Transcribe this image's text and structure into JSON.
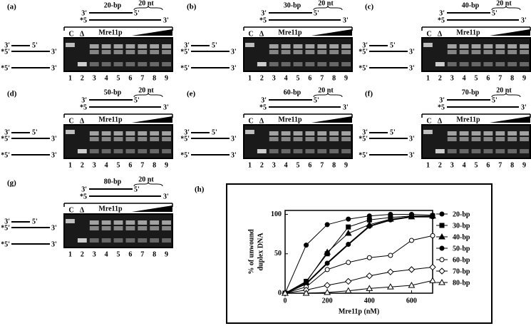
{
  "panels": [
    {
      "label": "(a)",
      "length": "20-bp",
      "overhang": "20 nt",
      "duplex": [
        "3'",
        "5'",
        "*5",
        "3'"
      ],
      "control": "C",
      "delta": "Δ",
      "protein": "Mre11p",
      "lanes": [
        "1",
        "2",
        "3",
        "4",
        "5",
        "6",
        "7",
        "8",
        "9"
      ],
      "markers": [
        "3'",
        "5'",
        "*5'",
        "3'",
        "*5'",
        "3'"
      ]
    },
    {
      "label": "(b)",
      "length": "30-bp",
      "overhang": "20 nt",
      "duplex": [
        "3'",
        "5'",
        "*5",
        "3'"
      ],
      "control": "C",
      "delta": "Δ",
      "protein": "Mre11p",
      "lanes": [
        "1",
        "2",
        "3",
        "4",
        "5",
        "6",
        "7",
        "8",
        "9"
      ],
      "markers": [
        "3'",
        "5'",
        "*5'",
        "3'",
        "*5'",
        "3'"
      ]
    },
    {
      "label": "(c)",
      "length": "40-bp",
      "overhang": "20 nt",
      "duplex": [
        "3'",
        "5'",
        "*5",
        "3'"
      ],
      "control": "C",
      "delta": "Δ",
      "protein": "Mre11p",
      "lanes": [
        "1",
        "2",
        "3",
        "4",
        "5",
        "6",
        "7",
        "8",
        "9"
      ],
      "markers": [
        "3'",
        "5'",
        "*5'",
        "3'",
        "*5'",
        "3'"
      ]
    },
    {
      "label": "(d)",
      "length": "50-bp",
      "overhang": "20 nt",
      "duplex": [
        "3'",
        "5'",
        "*5",
        "3'"
      ],
      "control": "C",
      "delta": "Δ",
      "protein": "Mre11p",
      "lanes": [
        "1",
        "2",
        "3",
        "4",
        "5",
        "6",
        "7",
        "8",
        "9"
      ],
      "markers": [
        "3'",
        "5'",
        "*5'",
        "3'",
        "*5'",
        "3'"
      ]
    },
    {
      "label": "(e)",
      "length": "60-bp",
      "overhang": "20 nt",
      "duplex": [
        "3'",
        "5'",
        "*5",
        "3'"
      ],
      "control": "C",
      "delta": "Δ",
      "protein": "Mre11p",
      "lanes": [
        "1",
        "2",
        "3",
        "4",
        "5",
        "6",
        "7",
        "8",
        "9"
      ],
      "markers": [
        "3'",
        "5'",
        "*5'",
        "3'",
        "*5'",
        "3'"
      ]
    },
    {
      "label": "(f)",
      "length": "70-bp",
      "overhang": "20 nt",
      "duplex": [
        "3'",
        "5'",
        "*5",
        "3'"
      ],
      "control": "C",
      "delta": "Δ",
      "protein": "Mre11p",
      "lanes": [
        "1",
        "2",
        "3",
        "4",
        "5",
        "6",
        "7",
        "8",
        "9"
      ],
      "markers": [
        "3'",
        "5'",
        "*5'",
        "3'",
        "*5'",
        "3'"
      ]
    },
    {
      "label": "(g)",
      "length": "80-bp",
      "overhang": "20 nt",
      "duplex": [
        "3'",
        "5'",
        "*5",
        "3'"
      ],
      "control": "C",
      "delta": "Δ",
      "protein": "Mre11p",
      "lanes": [
        "1",
        "2",
        "3",
        "4",
        "5",
        "6",
        "7",
        "8",
        "9"
      ],
      "markers": [
        "3'",
        "5'",
        "*5'",
        "3'",
        "*5'",
        "3'"
      ]
    }
  ],
  "chart_data": {
    "type": "line",
    "panel_label": "(h)",
    "x_label": "Mre11p (nM)",
    "y_label": [
      "% of unwound",
      "duplex DNA"
    ],
    "x": [
      0,
      100,
      200,
      300,
      400,
      500,
      600,
      700
    ],
    "xlim": [
      0,
      700
    ],
    "xticks": [
      0,
      200,
      400,
      600
    ],
    "ylim": [
      0,
      105
    ],
    "yticks": [
      0,
      50,
      100
    ],
    "series": [
      {
        "name": "20-bp",
        "color": "#000000",
        "marker": "circle",
        "values": [
          0,
          61,
          87,
          94,
          98,
          100,
          100,
          99
        ]
      },
      {
        "name": "30-bp",
        "color": "#000000",
        "marker": "square",
        "values": [
          0,
          15,
          50,
          84,
          93,
          96,
          98,
          98
        ]
      },
      {
        "name": "40-bp",
        "color": "#000000",
        "marker": "triangle",
        "values": [
          0,
          14,
          52,
          76,
          87,
          94,
          97,
          98
        ]
      },
      {
        "name": "50-bp",
        "color": "#000000",
        "marker": "circle",
        "values": [
          0,
          12,
          38,
          62,
          85,
          93,
          97,
          97
        ]
      },
      {
        "name": "60-bp",
        "color": "#000000",
        "marker": "circle-open",
        "values": [
          0,
          8,
          30,
          39,
          45,
          48,
          67,
          73
        ]
      },
      {
        "name": "70-bp",
        "color": "#000000",
        "marker": "diamond-open",
        "values": [
          0,
          4,
          10,
          15,
          22,
          27,
          30,
          33
        ]
      },
      {
        "name": "80-bp",
        "color": "#000000",
        "marker": "triangle-open",
        "values": [
          0,
          0,
          1,
          3,
          6,
          8,
          10,
          16
        ]
      }
    ]
  }
}
